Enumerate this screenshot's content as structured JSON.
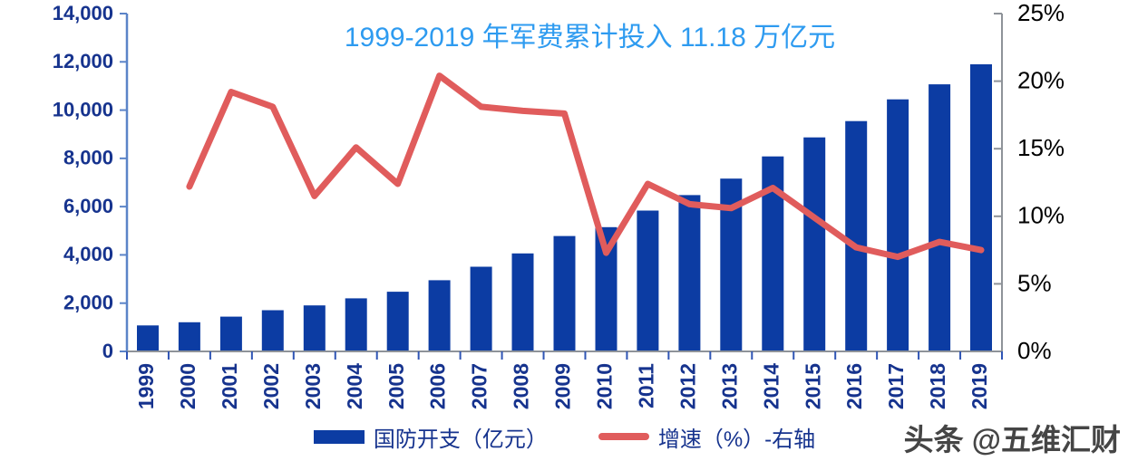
{
  "watermark": "头条 @五维汇财",
  "chart_data": {
    "type": "combo-bar-line",
    "title": "1999-2019 年军费累计投入 11.18 万亿元",
    "title_color": "#2E9BF0",
    "grid": false,
    "legend_position": "bottom",
    "categories": [
      "1999",
      "2000",
      "2001",
      "2002",
      "2003",
      "2004",
      "2005",
      "2006",
      "2007",
      "2008",
      "2009",
      "2010",
      "2011",
      "2012",
      "2013",
      "2014",
      "2015",
      "2016",
      "2017",
      "2018",
      "2019"
    ],
    "series": [
      {
        "name": "国防开支（亿元）",
        "type": "bar",
        "axis": "left",
        "color": "#0C3CA3",
        "values": [
          1076,
          1208,
          1442,
          1708,
          1908,
          2200,
          2475,
          2950,
          3509,
          4060,
          4780,
          5150,
          5836,
          6480,
          7160,
          8082,
          8869,
          9544,
          10444,
          11070,
          11899
        ]
      },
      {
        "name": "增速（%）-右轴",
        "type": "line",
        "axis": "right",
        "color": "#E05C5C",
        "values": [
          null,
          12.2,
          19.2,
          18.1,
          11.5,
          15.1,
          12.4,
          20.4,
          18.1,
          17.8,
          17.6,
          7.3,
          12.4,
          10.9,
          10.6,
          12.1,
          9.9,
          7.7,
          7.0,
          8.1,
          7.5
        ]
      }
    ],
    "left_axis": {
      "min": 0,
      "max": 14000,
      "step": 2000,
      "tick_labels": [
        "0",
        "2,000",
        "4,000",
        "6,000",
        "8,000",
        "10,000",
        "12,000",
        "14,000"
      ],
      "label_color": "#16338E",
      "line_color": "#5B84C8"
    },
    "right_axis": {
      "min": 0,
      "max": 25,
      "step": 5,
      "tick_labels": [
        "0%",
        "5%",
        "10%",
        "15%",
        "20%",
        "25%"
      ],
      "label_color": "#000000",
      "line_color": "#8E9399"
    },
    "x_axis": {
      "label_rotation": -90,
      "label_color": "#16338E",
      "line_color": "#8E9399",
      "tick_color": "#2F55B5"
    }
  }
}
